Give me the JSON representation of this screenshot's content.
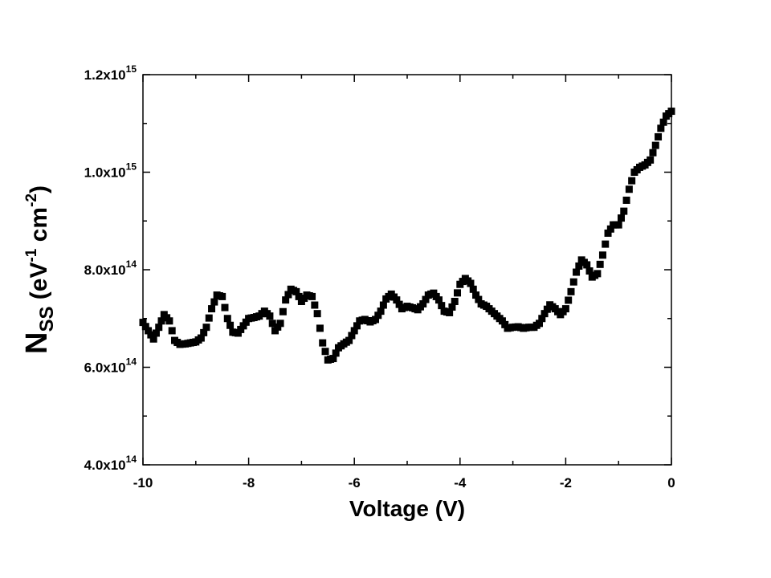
{
  "chart_data": {
    "type": "scatter",
    "xlabel": "Voltage (V)",
    "ylabel_main": "N",
    "ylabel_sub": "SS",
    "ylabel_unit_prefix": " (eV",
    "ylabel_unit_exp1": "-1",
    "ylabel_unit_mid": " cm",
    "ylabel_unit_exp2": "-2",
    "ylabel_unit_suffix": ")",
    "xlim": [
      -10,
      0
    ],
    "ylim": [
      400000000000000.0,
      1200000000000000.0
    ],
    "grid": false,
    "x_ticks": [
      {
        "value": -10,
        "label": "-10"
      },
      {
        "value": -8,
        "label": "-8"
      },
      {
        "value": -6,
        "label": "-6"
      },
      {
        "value": -4,
        "label": "-4"
      },
      {
        "value": -2,
        "label": "-2"
      },
      {
        "value": 0,
        "label": "0"
      }
    ],
    "y_ticks": [
      {
        "value": 400000000000000.0,
        "mantissa": "4.0x10",
        "exponent": "14"
      },
      {
        "value": 600000000000000.0,
        "mantissa": "6.0x10",
        "exponent": "14"
      },
      {
        "value": 800000000000000.0,
        "mantissa": "8.0x10",
        "exponent": "14"
      },
      {
        "value": 1000000000000000.0,
        "mantissa": "1.0x10",
        "exponent": "15"
      },
      {
        "value": 1200000000000000.0,
        "mantissa": "1.2x10",
        "exponent": "15"
      }
    ],
    "marker_color": "#000000",
    "points": [
      [
        -10.0,
        692000000000000.0
      ],
      [
        -9.9,
        675000000000000.0
      ],
      [
        -9.8,
        658000000000000.0
      ],
      [
        -9.7,
        682000000000000.0
      ],
      [
        -9.6,
        708000000000000.0
      ],
      [
        -9.5,
        695000000000000.0
      ],
      [
        -9.4,
        655000000000000.0
      ],
      [
        -9.3,
        647000000000000.0
      ],
      [
        -9.2,
        648000000000000.0
      ],
      [
        -9.1,
        650000000000000.0
      ],
      [
        -9.0,
        652000000000000.0
      ],
      [
        -8.9,
        660000000000000.0
      ],
      [
        -8.8,
        682000000000000.0
      ],
      [
        -8.7,
        720000000000000.0
      ],
      [
        -8.6,
        748000000000000.0
      ],
      [
        -8.5,
        745000000000000.0
      ],
      [
        -8.4,
        700000000000000.0
      ],
      [
        -8.3,
        672000000000000.0
      ],
      [
        -8.2,
        670000000000000.0
      ],
      [
        -8.1,
        685000000000000.0
      ],
      [
        -8.0,
        700000000000000.0
      ],
      [
        -7.9,
        702000000000000.0
      ],
      [
        -7.8,
        705000000000000.0
      ],
      [
        -7.7,
        715000000000000.0
      ],
      [
        -7.6,
        705000000000000.0
      ],
      [
        -7.5,
        675000000000000.0
      ],
      [
        -7.4,
        690000000000000.0
      ],
      [
        -7.3,
        738000000000000.0
      ],
      [
        -7.2,
        760000000000000.0
      ],
      [
        -7.1,
        755000000000000.0
      ],
      [
        -7.0,
        735000000000000.0
      ],
      [
        -6.9,
        748000000000000.0
      ],
      [
        -6.8,
        745000000000000.0
      ],
      [
        -6.7,
        710000000000000.0
      ],
      [
        -6.6,
        650000000000000.0
      ],
      [
        -6.5,
        615000000000000.0
      ],
      [
        -6.4,
        618000000000000.0
      ],
      [
        -6.3,
        640000000000000.0
      ],
      [
        -6.2,
        648000000000000.0
      ],
      [
        -6.1,
        655000000000000.0
      ],
      [
        -6.0,
        675000000000000.0
      ],
      [
        -5.9,
        695000000000000.0
      ],
      [
        -5.8,
        698000000000000.0
      ],
      [
        -5.7,
        693000000000000.0
      ],
      [
        -5.6,
        698000000000000.0
      ],
      [
        -5.5,
        715000000000000.0
      ],
      [
        -5.4,
        740000000000000.0
      ],
      [
        -5.3,
        750000000000000.0
      ],
      [
        -5.2,
        738000000000000.0
      ],
      [
        -5.1,
        720000000000000.0
      ],
      [
        -5.0,
        725000000000000.0
      ],
      [
        -4.9,
        722000000000000.0
      ],
      [
        -4.8,
        718000000000000.0
      ],
      [
        -4.7,
        730000000000000.0
      ],
      [
        -4.6,
        748000000000000.0
      ],
      [
        -4.5,
        752000000000000.0
      ],
      [
        -4.4,
        738000000000000.0
      ],
      [
        -4.3,
        715000000000000.0
      ],
      [
        -4.2,
        712000000000000.0
      ],
      [
        -4.1,
        735000000000000.0
      ],
      [
        -4.0,
        770000000000000.0
      ],
      [
        -3.9,
        782000000000000.0
      ],
      [
        -3.8,
        772000000000000.0
      ],
      [
        -3.7,
        748000000000000.0
      ],
      [
        -3.6,
        730000000000000.0
      ],
      [
        -3.5,
        725000000000000.0
      ],
      [
        -3.4,
        715000000000000.0
      ],
      [
        -3.3,
        705000000000000.0
      ],
      [
        -3.2,
        695000000000000.0
      ],
      [
        -3.1,
        680000000000000.0
      ],
      [
        -3.0,
        682000000000000.0
      ],
      [
        -2.9,
        683000000000000.0
      ],
      [
        -2.8,
        680000000000000.0
      ],
      [
        -2.7,
        682000000000000.0
      ],
      [
        -2.6,
        682000000000000.0
      ],
      [
        -2.5,
        690000000000000.0
      ],
      [
        -2.4,
        710000000000000.0
      ],
      [
        -2.3,
        728000000000000.0
      ],
      [
        -2.2,
        720000000000000.0
      ],
      [
        -2.1,
        708000000000000.0
      ],
      [
        -2.0,
        720000000000000.0
      ],
      [
        -1.9,
        755000000000000.0
      ],
      [
        -1.8,
        795000000000000.0
      ],
      [
        -1.7,
        820000000000000.0
      ],
      [
        -1.6,
        810000000000000.0
      ],
      [
        -1.5,
        785000000000000.0
      ],
      [
        -1.4,
        792000000000000.0
      ],
      [
        -1.3,
        830000000000000.0
      ],
      [
        -1.2,
        875000000000000.0
      ],
      [
        -1.1,
        892000000000000.0
      ],
      [
        -1.0,
        892000000000000.0
      ],
      [
        -0.9,
        920000000000000.0
      ],
      [
        -0.8,
        965000000000000.0
      ],
      [
        -0.7,
        1000000000000000.0
      ],
      [
        -0.6,
        1010000000000000.0
      ],
      [
        -0.5,
        1015000000000000.0
      ],
      [
        -0.4,
        1025000000000000.0
      ],
      [
        -0.3,
        1055000000000000.0
      ],
      [
        -0.2,
        1090000000000000.0
      ],
      [
        -0.1,
        1115000000000000.0
      ],
      [
        0.0,
        1125000000000000.0
      ]
    ]
  }
}
